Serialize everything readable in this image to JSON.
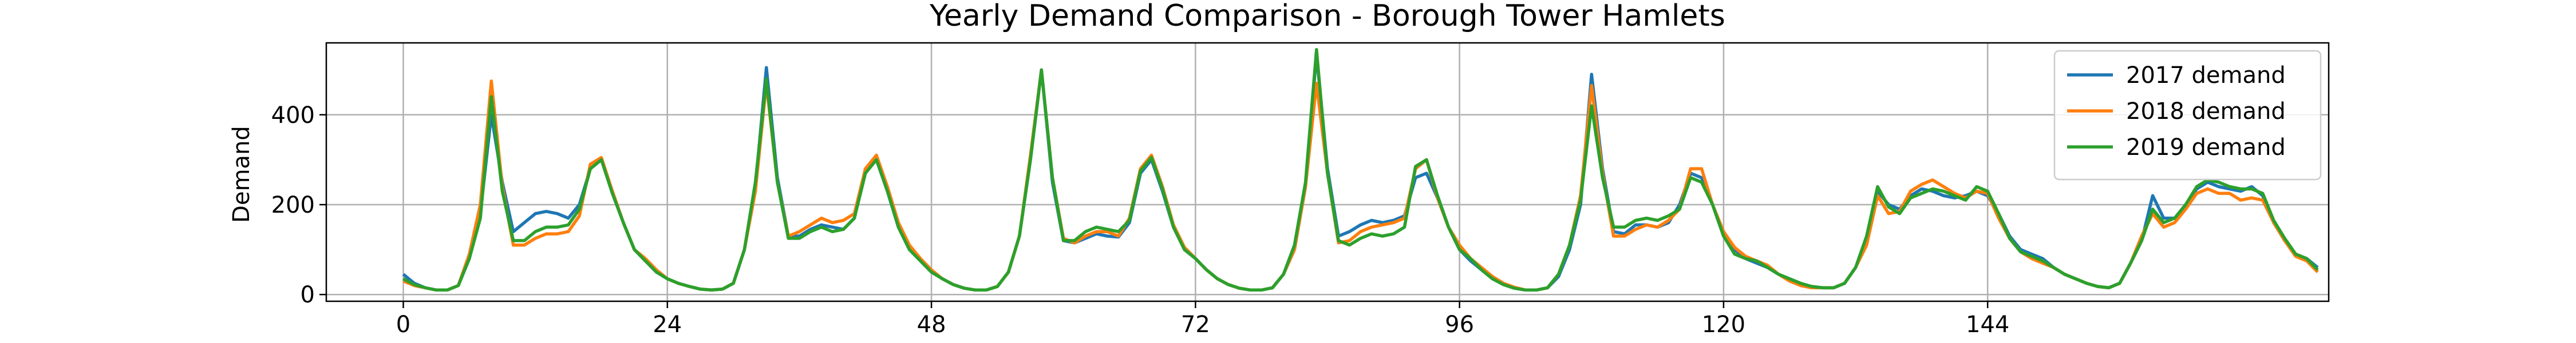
{
  "chart_data": {
    "type": "line",
    "title": "Yearly Demand Comparison - Borough Tower Hamlets",
    "xlabel": "",
    "ylabel": "Demand",
    "xlim": [
      -7,
      175
    ],
    "ylim": [
      -15,
      560
    ],
    "xticks": [
      0,
      24,
      48,
      72,
      96,
      120,
      144
    ],
    "yticks": [
      0,
      200,
      400
    ],
    "grid": true,
    "legend_position": "top-right",
    "series": [
      {
        "name": "2017 demand",
        "color": "#1f77b4",
        "values": [
          45,
          25,
          15,
          10,
          10,
          20,
          80,
          180,
          400,
          250,
          140,
          160,
          180,
          185,
          180,
          170,
          200,
          280,
          300,
          230,
          160,
          100,
          75,
          50,
          35,
          25,
          18,
          12,
          10,
          12,
          25,
          100,
          240,
          505,
          260,
          130,
          130,
          145,
          155,
          150,
          145,
          170,
          280,
          300,
          230,
          150,
          100,
          75,
          50,
          35,
          22,
          14,
          10,
          10,
          18,
          50,
          130,
          300,
          500,
          250,
          120,
          115,
          125,
          135,
          130,
          128,
          160,
          270,
          300,
          230,
          150,
          100,
          80,
          55,
          35,
          22,
          14,
          10,
          10,
          15,
          45,
          100,
          240,
          535,
          280,
          130,
          140,
          155,
          165,
          160,
          165,
          175,
          260,
          270,
          215,
          150,
          100,
          75,
          55,
          35,
          22,
          14,
          10,
          10,
          15,
          40,
          100,
          200,
          490,
          280,
          140,
          135,
          155,
          155,
          150,
          160,
          200,
          270,
          260,
          200,
          130,
          100,
          80,
          70,
          60,
          45,
          35,
          25,
          18,
          15,
          15,
          25,
          60,
          120,
          230,
          200,
          190,
          220,
          235,
          230,
          220,
          215,
          220,
          230,
          220,
          180,
          130,
          100,
          90,
          80,
          60,
          45,
          35,
          25,
          18,
          15,
          25,
          70,
          120,
          220,
          170,
          170,
          200,
          235,
          250,
          240,
          235,
          230,
          240,
          220,
          160,
          120,
          90,
          80,
          60
        ]
      },
      {
        "name": "2018 demand",
        "color": "#ff7f0e",
        "values": [
          30,
          20,
          15,
          10,
          10,
          20,
          90,
          200,
          475,
          240,
          110,
          110,
          125,
          135,
          135,
          140,
          175,
          290,
          305,
          230,
          160,
          100,
          80,
          55,
          35,
          25,
          18,
          12,
          10,
          12,
          25,
          100,
          230,
          470,
          250,
          130,
          140,
          155,
          170,
          160,
          165,
          180,
          280,
          310,
          240,
          160,
          110,
          80,
          55,
          35,
          22,
          14,
          10,
          10,
          18,
          50,
          130,
          310,
          500,
          260,
          125,
          115,
          130,
          140,
          140,
          130,
          170,
          280,
          310,
          240,
          155,
          105,
          80,
          55,
          35,
          22,
          14,
          10,
          10,
          15,
          45,
          100,
          240,
          470,
          270,
          115,
          120,
          140,
          150,
          155,
          160,
          170,
          280,
          300,
          215,
          150,
          110,
          80,
          60,
          40,
          25,
          16,
          10,
          10,
          15,
          45,
          110,
          220,
          465,
          270,
          130,
          130,
          145,
          155,
          150,
          165,
          190,
          280,
          280,
          200,
          140,
          105,
          85,
          75,
          65,
          45,
          30,
          20,
          15,
          15,
          15,
          25,
          60,
          110,
          220,
          180,
          185,
          230,
          245,
          255,
          240,
          225,
          215,
          230,
          225,
          170,
          125,
          95,
          80,
          70,
          60,
          45,
          35,
          25,
          18,
          15,
          25,
          70,
          130,
          180,
          150,
          160,
          190,
          225,
          235,
          225,
          225,
          210,
          215,
          210,
          160,
          120,
          85,
          75,
          50
        ]
      },
      {
        "name": "2019 demand",
        "color": "#2ca02c",
        "values": [
          35,
          22,
          15,
          10,
          10,
          20,
          80,
          170,
          440,
          230,
          120,
          120,
          140,
          150,
          150,
          155,
          190,
          280,
          300,
          225,
          160,
          100,
          75,
          50,
          35,
          25,
          18,
          12,
          10,
          12,
          25,
          100,
          250,
          480,
          250,
          125,
          125,
          140,
          150,
          140,
          145,
          170,
          270,
          300,
          230,
          150,
          100,
          75,
          50,
          35,
          22,
          14,
          10,
          10,
          18,
          50,
          130,
          300,
          500,
          260,
          120,
          120,
          140,
          150,
          145,
          140,
          165,
          275,
          305,
          235,
          150,
          100,
          80,
          55,
          35,
          22,
          14,
          10,
          10,
          15,
          45,
          110,
          250,
          545,
          270,
          120,
          110,
          125,
          135,
          130,
          135,
          150,
          285,
          300,
          220,
          150,
          100,
          80,
          55,
          35,
          22,
          14,
          10,
          10,
          15,
          45,
          110,
          210,
          420,
          260,
          150,
          150,
          165,
          170,
          165,
          175,
          190,
          260,
          250,
          200,
          130,
          90,
          80,
          75,
          60,
          45,
          35,
          25,
          18,
          15,
          15,
          25,
          60,
          130,
          240,
          195,
          180,
          215,
          225,
          235,
          230,
          220,
          210,
          240,
          230,
          180,
          125,
          95,
          85,
          75,
          60,
          45,
          35,
          25,
          18,
          15,
          25,
          70,
          120,
          190,
          160,
          170,
          200,
          240,
          255,
          250,
          240,
          235,
          235,
          225,
          165,
          125,
          90,
          80,
          55
        ]
      }
    ]
  }
}
